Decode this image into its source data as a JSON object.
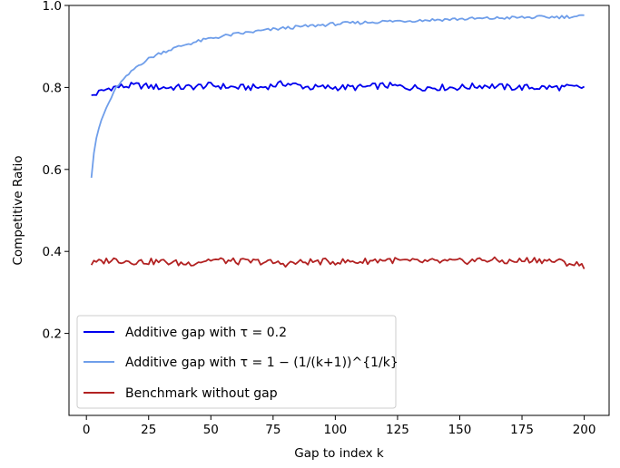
{
  "chart_data": {
    "type": "line",
    "title": "",
    "xlabel": "Gap to index k",
    "ylabel": "Competitive Ratio",
    "xlim": [
      -7,
      210
    ],
    "ylim": [
      0.0,
      1.0
    ],
    "xticks": [
      0,
      25,
      50,
      75,
      100,
      125,
      150,
      175,
      200
    ],
    "yticks": [
      0.2,
      0.4,
      0.6,
      0.8,
      1.0
    ],
    "grid": false,
    "legend_position": "lower-left",
    "series": [
      {
        "name": "Additive gap with τ = 0.2",
        "color": "#0000ee",
        "x": [
          2,
          10,
          20,
          30,
          40,
          50,
          60,
          70,
          80,
          90,
          100,
          110,
          120,
          130,
          140,
          150,
          160,
          170,
          180,
          190,
          200
        ],
        "y": [
          0.78,
          0.8,
          0.805,
          0.8,
          0.8,
          0.805,
          0.8,
          0.8,
          0.81,
          0.8,
          0.8,
          0.8,
          0.805,
          0.8,
          0.8,
          0.8,
          0.805,
          0.8,
          0.8,
          0.8,
          0.8
        ]
      },
      {
        "name": "Additive gap with τ = 1 − (1/(k+1))^{1/k}",
        "color": "#6f9eea",
        "x": [
          2,
          3,
          4,
          5,
          6,
          8,
          10,
          12,
          15,
          20,
          25,
          30,
          40,
          50,
          60,
          70,
          80,
          90,
          100,
          110,
          120,
          130,
          140,
          150,
          160,
          170,
          180,
          190,
          200
        ],
        "y": [
          0.58,
          0.64,
          0.675,
          0.7,
          0.72,
          0.75,
          0.775,
          0.8,
          0.82,
          0.85,
          0.87,
          0.885,
          0.905,
          0.92,
          0.93,
          0.938,
          0.945,
          0.95,
          0.955,
          0.958,
          0.961,
          0.963,
          0.965,
          0.967,
          0.968,
          0.97,
          0.971,
          0.972,
          0.974
        ]
      },
      {
        "name": "Benchmark without gap",
        "color": "#b22222",
        "x": [
          2,
          10,
          20,
          30,
          40,
          50,
          60,
          70,
          80,
          90,
          100,
          110,
          120,
          130,
          140,
          150,
          160,
          170,
          180,
          190,
          200
        ],
        "y": [
          0.37,
          0.38,
          0.375,
          0.375,
          0.37,
          0.38,
          0.375,
          0.375,
          0.37,
          0.375,
          0.375,
          0.375,
          0.38,
          0.375,
          0.375,
          0.375,
          0.38,
          0.375,
          0.38,
          0.375,
          0.365
        ]
      }
    ]
  }
}
